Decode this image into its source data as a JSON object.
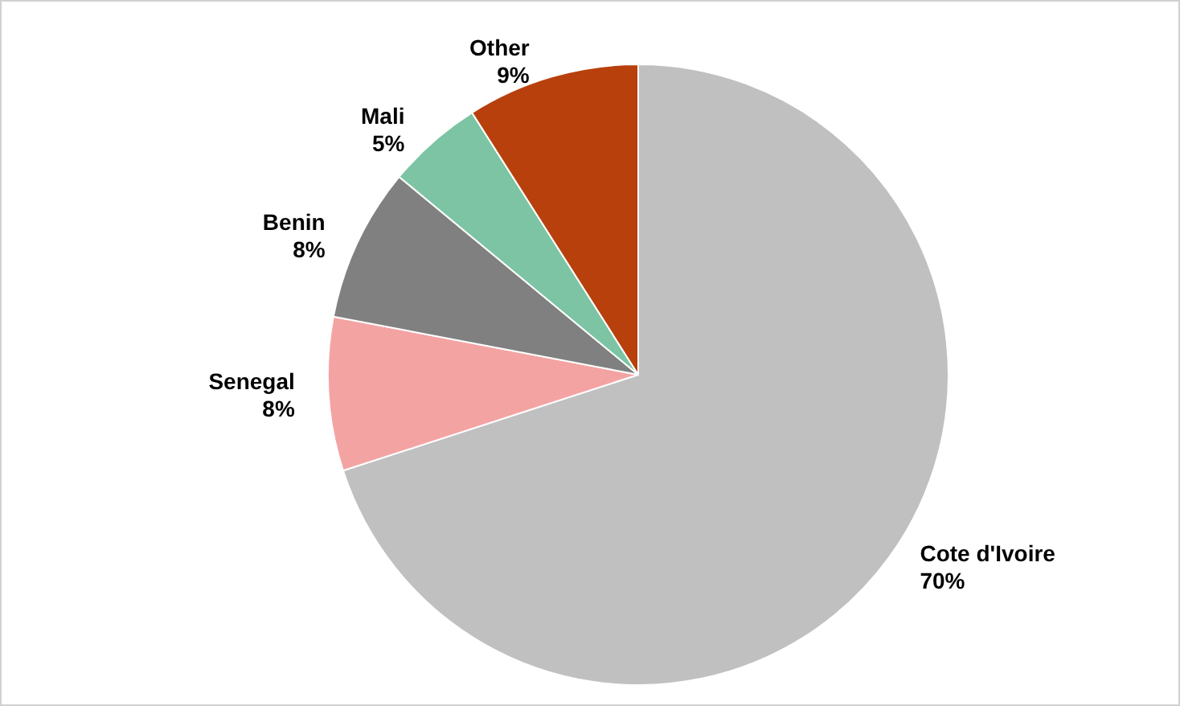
{
  "chart_data": {
    "type": "pie",
    "categories": [
      "Cote d'Ivoire",
      "Senegal",
      "Benin",
      "Mali",
      "Other"
    ],
    "values": [
      70,
      8,
      8,
      5,
      9
    ],
    "colors": [
      "#c0c0c0",
      "#f4a3a3",
      "#808080",
      "#7cc4a4",
      "#b8400c"
    ],
    "value_labels": [
      "70%",
      "8%",
      "8%",
      "5%",
      "9%"
    ],
    "legend": false
  }
}
